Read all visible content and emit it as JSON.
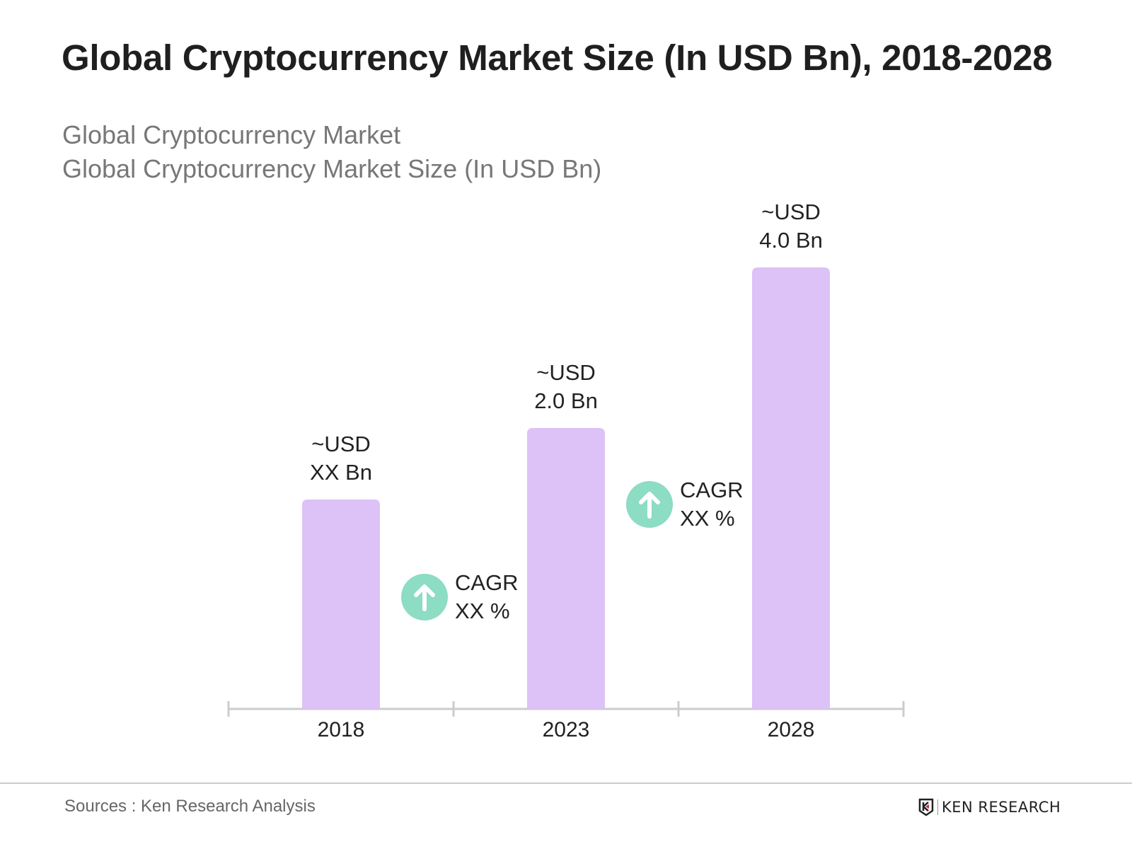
{
  "header": {
    "title": "Global Cryptocurrency Market Size (In USD Bn), 2018-2028",
    "subtitle_1": "Global Cryptocurrency Market",
    "subtitle_2": "Global Cryptocurrency Market Size (In USD Bn)"
  },
  "chart_data": {
    "type": "bar",
    "title": "Global Cryptocurrency Market Size (In USD Bn), 2018-2028",
    "categories": [
      "2018",
      "2023",
      "2028"
    ],
    "values": [
      null,
      2.0,
      4.0
    ],
    "data_labels": [
      [
        "~USD",
        "XX Bn"
      ],
      [
        "~USD",
        "2.0 Bn"
      ],
      [
        "~USD",
        "4.0 Bn"
      ]
    ],
    "annotations": [
      {
        "between": [
          "2018",
          "2023"
        ],
        "lines": [
          "CAGR",
          "XX %"
        ],
        "icon": "arrow-up-circle-icon"
      },
      {
        "between": [
          "2023",
          "2028"
        ],
        "lines": [
          "CAGR",
          "XX %"
        ],
        "icon": "arrow-up-circle-icon"
      }
    ],
    "grid": false,
    "bar_color": "#dcc2f6",
    "icon_color": "#8ddcc4",
    "axis_color": "#cccccc"
  },
  "footer": {
    "source": "Sources : Ken Research Analysis",
    "logo_text": "KEN RESEARCH"
  }
}
